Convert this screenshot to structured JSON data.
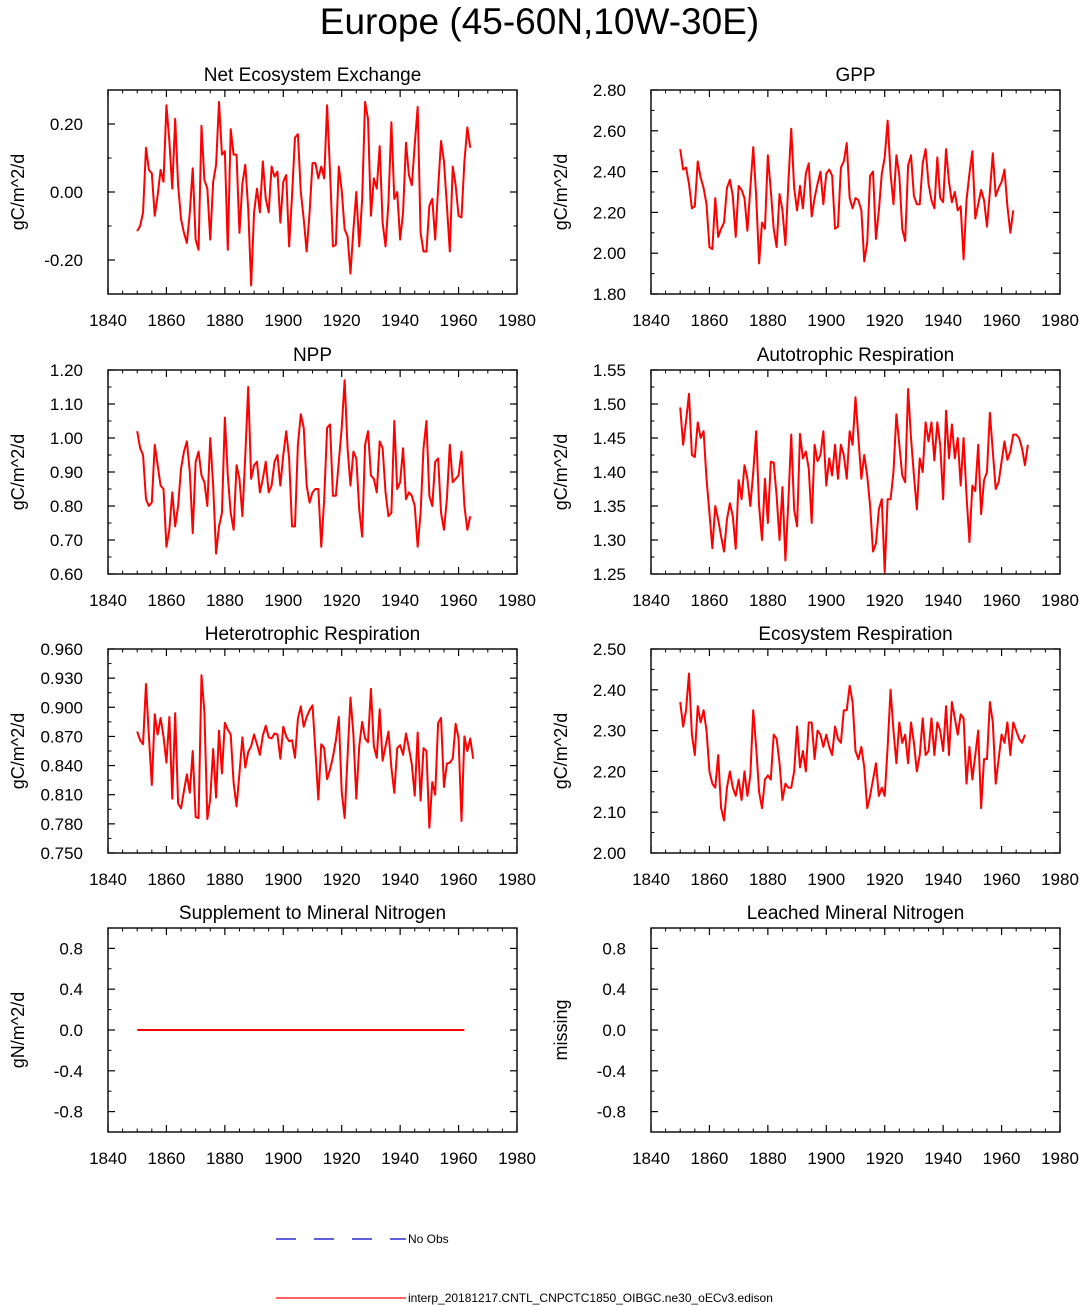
{
  "page_title": "Europe (45-60N,10W-30E)",
  "colors": {
    "model_line": "#ff0000",
    "obs_line": "#0000cd",
    "axis": "#000000"
  },
  "legend": {
    "obs_label": "No Obs",
    "model_label": "interp_20181217.CNTL_CNPCTC1850_OIBGC.ne30_oECv3.edison"
  },
  "chart_data": [
    {
      "type": "line",
      "title": "Net Ecosystem Exchange",
      "ylabel": "gC/m^2/d",
      "xlim": [
        1840,
        1980
      ],
      "ylim": [
        -0.3,
        0.3
      ],
      "xticks": [
        1840,
        1860,
        1880,
        1900,
        1920,
        1940,
        1960,
        1980
      ],
      "yticks": [
        -0.2,
        0.0,
        0.2
      ],
      "ytick_labels": [
        "-0.20",
        "0.00",
        "0.20"
      ],
      "x_start": 1850,
      "series": [
        {
          "name": "model",
          "values": [
            -0.115,
            -0.1,
            -0.06,
            0.13,
            0.065,
            0.055,
            -0.07,
            -0.01,
            0.065,
            0.03,
            0.255,
            0.15,
            0.01,
            0.215,
            0.02,
            -0.08,
            -0.12,
            -0.15,
            -0.06,
            0.07,
            -0.14,
            -0.17,
            0.195,
            0.035,
            0.01,
            -0.14,
            0.03,
            0.08,
            0.265,
            0.11,
            0.12,
            -0.17,
            0.185,
            0.11,
            0.11,
            -0.12,
            0.025,
            0.08,
            -0.05,
            -0.275,
            -0.06,
            0.01,
            -0.06,
            0.09,
            -0.02,
            -0.06,
            0.075,
            0.045,
            0.06,
            -0.09,
            0.03,
            0.05,
            -0.16,
            -0.01,
            0.16,
            0.17,
            0.0,
            -0.08,
            -0.175,
            -0.06,
            0.085,
            0.085,
            0.04,
            0.075,
            0.04,
            0.255,
            0.06,
            -0.16,
            -0.155,
            0.075,
            0.005,
            -0.11,
            -0.13,
            -0.24,
            -0.11,
            0.0,
            -0.16,
            -0.02,
            0.265,
            0.215,
            -0.07,
            0.04,
            0.01,
            0.135,
            -0.09,
            -0.16,
            -0.03,
            0.205,
            -0.02,
            0.0,
            -0.14,
            -0.06,
            0.145,
            0.05,
            0.02,
            0.14,
            0.25,
            -0.12,
            -0.175,
            -0.175,
            -0.04,
            -0.02,
            -0.14,
            0.01,
            0.15,
            0.09,
            -0.04,
            -0.175,
            0.075,
            0.02,
            -0.07,
            -0.075,
            0.09,
            0.19,
            0.13
          ]
        }
      ]
    },
    {
      "type": "line",
      "title": "GPP",
      "ylabel": "gC/m^2/d",
      "xlim": [
        1840,
        1980
      ],
      "ylim": [
        1.8,
        2.8
      ],
      "xticks": [
        1840,
        1860,
        1880,
        1900,
        1920,
        1940,
        1960,
        1980
      ],
      "yticks": [
        1.8,
        2.0,
        2.2,
        2.4,
        2.6,
        2.8
      ],
      "ytick_labels": [
        "1.80",
        "2.00",
        "2.20",
        "2.40",
        "2.60",
        "2.80"
      ],
      "x_start": 1850,
      "series": [
        {
          "name": "model",
          "values": [
            2.51,
            2.41,
            2.42,
            2.34,
            2.22,
            2.23,
            2.45,
            2.37,
            2.32,
            2.24,
            2.03,
            2.02,
            2.27,
            2.08,
            2.12,
            2.15,
            2.32,
            2.36,
            2.28,
            2.08,
            2.33,
            2.31,
            2.27,
            2.11,
            2.32,
            2.52,
            2.28,
            1.95,
            2.15,
            2.12,
            2.48,
            2.31,
            2.12,
            2.03,
            2.29,
            2.21,
            2.04,
            2.34,
            2.61,
            2.32,
            2.21,
            2.33,
            2.22,
            2.39,
            2.44,
            2.18,
            2.27,
            2.34,
            2.4,
            2.24,
            2.39,
            2.41,
            2.38,
            2.12,
            2.13,
            2.42,
            2.45,
            2.54,
            2.27,
            2.22,
            2.27,
            2.26,
            2.21,
            1.96,
            2.05,
            2.38,
            2.4,
            2.07,
            2.21,
            2.39,
            2.47,
            2.65,
            2.39,
            2.24,
            2.48,
            2.38,
            2.12,
            2.06,
            2.43,
            2.48,
            2.28,
            2.24,
            2.24,
            2.44,
            2.51,
            2.34,
            2.26,
            2.22,
            2.47,
            2.27,
            2.25,
            2.51,
            2.35,
            2.25,
            2.3,
            2.21,
            2.23,
            1.97,
            2.26,
            2.39,
            2.5,
            2.17,
            2.24,
            2.31,
            2.26,
            2.13,
            2.3,
            2.49,
            2.28,
            2.32,
            2.35,
            2.41,
            2.23,
            2.1,
            2.21
          ]
        }
      ]
    },
    {
      "type": "line",
      "title": "NPP",
      "ylabel": "gC/m^2/d",
      "xlim": [
        1840,
        1980
      ],
      "ylim": [
        0.6,
        1.2
      ],
      "xticks": [
        1840,
        1860,
        1880,
        1900,
        1920,
        1940,
        1960,
        1980
      ],
      "yticks": [
        0.6,
        0.7,
        0.8,
        0.9,
        1.0,
        1.1,
        1.2
      ],
      "ytick_labels": [
        "0.60",
        "0.70",
        "0.80",
        "0.90",
        "1.00",
        "1.10",
        "1.20"
      ],
      "x_start": 1850,
      "series": [
        {
          "name": "model",
          "values": [
            1.02,
            0.97,
            0.95,
            0.82,
            0.8,
            0.81,
            0.98,
            0.92,
            0.86,
            0.85,
            0.68,
            0.73,
            0.84,
            0.74,
            0.8,
            0.91,
            0.96,
            0.99,
            0.9,
            0.72,
            0.93,
            0.96,
            0.89,
            0.87,
            0.8,
            1.0,
            0.86,
            0.66,
            0.74,
            0.78,
            1.06,
            0.89,
            0.78,
            0.73,
            0.92,
            0.88,
            0.77,
            0.95,
            1.15,
            0.88,
            0.92,
            0.93,
            0.84,
            0.88,
            0.93,
            0.84,
            0.86,
            0.93,
            0.95,
            0.86,
            0.95,
            1.02,
            0.94,
            0.74,
            0.74,
            0.98,
            1.07,
            1.03,
            0.86,
            0.81,
            0.84,
            0.85,
            0.85,
            0.68,
            0.82,
            1.03,
            1.04,
            0.83,
            0.83,
            0.93,
            1.03,
            1.17,
            0.97,
            0.86,
            0.96,
            0.94,
            0.79,
            0.71,
            0.98,
            1.02,
            0.89,
            0.88,
            0.84,
            0.99,
            0.97,
            0.84,
            0.77,
            0.78,
            1.05,
            0.85,
            0.87,
            0.97,
            0.82,
            0.84,
            0.83,
            0.8,
            0.68,
            0.78,
            0.97,
            1.05,
            0.83,
            0.8,
            0.93,
            0.94,
            0.78,
            0.73,
            0.82,
            0.98,
            0.87,
            0.88,
            0.89,
            0.96,
            0.8,
            0.73,
            0.77
          ]
        }
      ]
    },
    {
      "type": "line",
      "title": "Autotrophic Respiration",
      "ylabel": "gC/m^2/d",
      "xlim": [
        1840,
        1980
      ],
      "ylim": [
        1.25,
        1.55
      ],
      "xticks": [
        1840,
        1860,
        1880,
        1900,
        1920,
        1940,
        1960,
        1980
      ],
      "yticks": [
        1.25,
        1.3,
        1.35,
        1.4,
        1.45,
        1.5,
        1.55
      ],
      "ytick_labels": [
        "1.25",
        "1.30",
        "1.35",
        "1.40",
        "1.45",
        "1.50",
        "1.55"
      ],
      "x_start": 1850,
      "series": [
        {
          "name": "model",
          "values": [
            1.495,
            1.44,
            1.475,
            1.515,
            1.425,
            1.422,
            1.473,
            1.45,
            1.46,
            1.39,
            1.34,
            1.288,
            1.35,
            1.33,
            1.305,
            1.283,
            1.33,
            1.354,
            1.335,
            1.287,
            1.388,
            1.36,
            1.41,
            1.39,
            1.35,
            1.4,
            1.46,
            1.35,
            1.3,
            1.39,
            1.325,
            1.415,
            1.414,
            1.365,
            1.3,
            1.378,
            1.27,
            1.355,
            1.455,
            1.345,
            1.32,
            1.456,
            1.42,
            1.43,
            1.405,
            1.325,
            1.44,
            1.416,
            1.425,
            1.46,
            1.38,
            1.42,
            1.395,
            1.44,
            1.39,
            1.44,
            1.425,
            1.39,
            1.46,
            1.44,
            1.51,
            1.45,
            1.39,
            1.425,
            1.395,
            1.35,
            1.283,
            1.295,
            1.345,
            1.36,
            1.253,
            1.36,
            1.36,
            1.4,
            1.485,
            1.44,
            1.395,
            1.385,
            1.522,
            1.45,
            1.395,
            1.345,
            1.42,
            1.4,
            1.473,
            1.445,
            1.473,
            1.417,
            1.473,
            1.44,
            1.36,
            1.49,
            1.42,
            1.47,
            1.42,
            1.45,
            1.38,
            1.45,
            1.365,
            1.297,
            1.38,
            1.372,
            1.44,
            1.338,
            1.388,
            1.4,
            1.487,
            1.43,
            1.375,
            1.385,
            1.415,
            1.445,
            1.418,
            1.43,
            1.455,
            1.455,
            1.45,
            1.435,
            1.41,
            1.44
          ]
        }
      ]
    },
    {
      "type": "line",
      "title": "Heterotrophic Respiration",
      "ylabel": "gC/m^2/d",
      "xlim": [
        1840,
        1980
      ],
      "ylim": [
        0.75,
        0.96
      ],
      "xticks": [
        1840,
        1860,
        1880,
        1900,
        1920,
        1940,
        1960,
        1980
      ],
      "yticks": [
        0.75,
        0.78,
        0.81,
        0.84,
        0.87,
        0.9,
        0.93,
        0.96
      ],
      "ytick_labels": [
        "0.750",
        "0.780",
        "0.810",
        "0.840",
        "0.870",
        "0.900",
        "0.930",
        "0.960"
      ],
      "x_start": 1850,
      "series": [
        {
          "name": "model",
          "values": [
            0.875,
            0.866,
            0.862,
            0.924,
            0.87,
            0.82,
            0.893,
            0.872,
            0.889,
            0.87,
            0.843,
            0.89,
            0.806,
            0.894,
            0.801,
            0.796,
            0.814,
            0.831,
            0.812,
            0.855,
            0.787,
            0.786,
            0.933,
            0.895,
            0.785,
            0.806,
            0.857,
            0.807,
            0.876,
            0.832,
            0.884,
            0.877,
            0.872,
            0.822,
            0.798,
            0.832,
            0.869,
            0.838,
            0.854,
            0.86,
            0.872,
            0.862,
            0.851,
            0.871,
            0.881,
            0.869,
            0.868,
            0.873,
            0.872,
            0.847,
            0.88,
            0.87,
            0.865,
            0.866,
            0.848,
            0.888,
            0.901,
            0.88,
            0.89,
            0.897,
            0.902,
            0.855,
            0.805,
            0.862,
            0.858,
            0.826,
            0.836,
            0.849,
            0.866,
            0.89,
            0.813,
            0.786,
            0.85,
            0.91,
            0.872,
            0.806,
            0.86,
            0.885,
            0.868,
            0.864,
            0.919,
            0.86,
            0.848,
            0.898,
            0.845,
            0.86,
            0.875,
            0.838,
            0.812,
            0.858,
            0.861,
            0.851,
            0.873,
            0.858,
            0.841,
            0.809,
            0.874,
            0.804,
            0.858,
            0.855,
            0.776,
            0.823,
            0.81,
            0.884,
            0.889,
            0.818,
            0.842,
            0.843,
            0.847,
            0.883,
            0.868,
            0.783,
            0.87,
            0.855,
            0.868,
            0.847
          ]
        }
      ]
    },
    {
      "type": "line",
      "title": "Ecosystem Respiration",
      "ylabel": "gC/m^2/d",
      "xlim": [
        1840,
        1980
      ],
      "ylim": [
        2.0,
        2.5
      ],
      "xticks": [
        1840,
        1860,
        1880,
        1900,
        1920,
        1940,
        1960,
        1980
      ],
      "yticks": [
        2.0,
        2.1,
        2.2,
        2.3,
        2.4,
        2.5
      ],
      "ytick_labels": [
        "2.00",
        "2.10",
        "2.20",
        "2.30",
        "2.40",
        "2.50"
      ],
      "x_start": 1850,
      "series": [
        {
          "name": "model",
          "values": [
            2.37,
            2.31,
            2.35,
            2.44,
            2.29,
            2.24,
            2.36,
            2.32,
            2.35,
            2.3,
            2.2,
            2.17,
            2.16,
            2.24,
            2.11,
            2.08,
            2.16,
            2.2,
            2.16,
            2.14,
            2.18,
            2.13,
            2.2,
            2.14,
            2.19,
            2.35,
            2.26,
            2.15,
            2.11,
            2.18,
            2.19,
            2.18,
            2.29,
            2.28,
            2.22,
            2.13,
            2.17,
            2.16,
            2.16,
            2.2,
            2.31,
            2.21,
            2.25,
            2.2,
            2.32,
            2.32,
            2.23,
            2.3,
            2.29,
            2.26,
            2.29,
            2.26,
            2.24,
            2.31,
            2.28,
            2.27,
            2.35,
            2.35,
            2.41,
            2.37,
            2.25,
            2.23,
            2.26,
            2.21,
            2.11,
            2.14,
            2.18,
            2.22,
            2.14,
            2.16,
            2.14,
            2.26,
            2.4,
            2.3,
            2.22,
            2.32,
            2.27,
            2.29,
            2.22,
            2.32,
            2.27,
            2.2,
            2.24,
            2.33,
            2.24,
            2.25,
            2.33,
            2.24,
            2.32,
            2.3,
            2.25,
            2.36,
            2.24,
            2.37,
            2.33,
            2.29,
            2.34,
            2.33,
            2.17,
            2.26,
            2.18,
            2.24,
            2.3,
            2.11,
            2.23,
            2.23,
            2.37,
            2.32,
            2.17,
            2.23,
            2.29,
            2.27,
            2.32,
            2.24,
            2.32,
            2.3,
            2.28,
            2.27,
            2.29
          ]
        }
      ]
    },
    {
      "type": "line",
      "title": "Supplement to Mineral Nitrogen",
      "ylabel": "gN/m^2/d",
      "xlim": [
        1840,
        1980
      ],
      "ylim": [
        -1.0,
        1.0
      ],
      "xticks": [
        1840,
        1860,
        1880,
        1900,
        1920,
        1940,
        1960,
        1980
      ],
      "yticks": [
        -0.8,
        -0.4,
        0.0,
        0.4,
        0.8
      ],
      "ytick_labels": [
        "-0.8",
        "-0.4",
        "0.0",
        "0.4",
        "0.8"
      ],
      "x_range": [
        1850,
        1962
      ],
      "series": [
        {
          "name": "model",
          "values": [
            0.0,
            0.0
          ]
        }
      ]
    },
    {
      "type": "line",
      "title": "Leached Mineral Nitrogen",
      "ylabel": "missing",
      "xlim": [
        1840,
        1980
      ],
      "ylim": [
        -1.0,
        1.0
      ],
      "xticks": [
        1840,
        1860,
        1880,
        1900,
        1920,
        1940,
        1960,
        1980
      ],
      "yticks": [
        -0.8,
        -0.4,
        0.0,
        0.4,
        0.8
      ],
      "ytick_labels": [
        "-0.8",
        "-0.4",
        "0.0",
        "0.4",
        "0.8"
      ],
      "series": []
    }
  ]
}
